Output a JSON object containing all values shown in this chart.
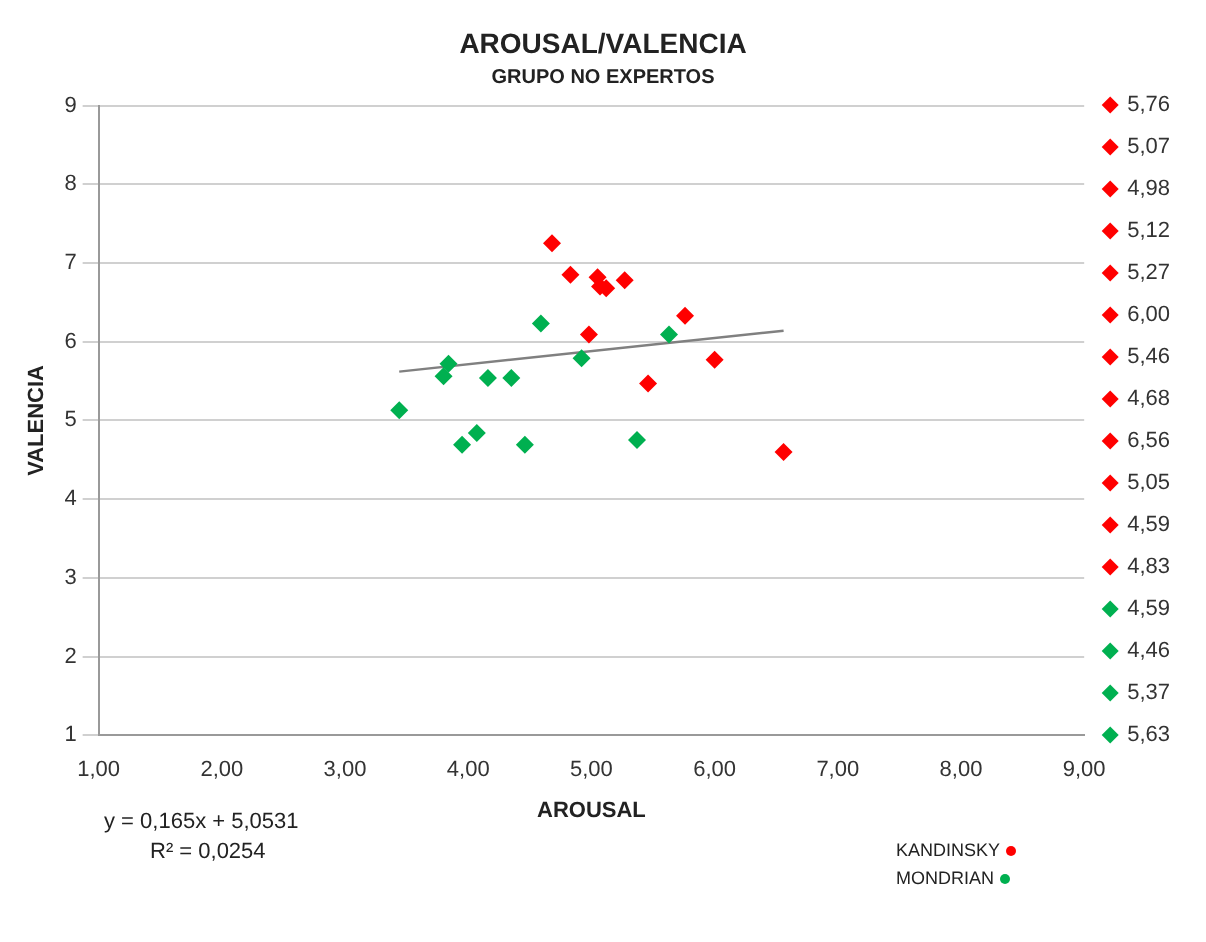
{
  "chart_data": {
    "type": "scatter",
    "title": "AROUSAL/VALENCIA",
    "subtitle": "GRUPO NO EXPERTOS",
    "xlabel": "AROUSAL",
    "ylabel": "VALENCIA",
    "xlim": [
      1,
      9
    ],
    "xticks": [
      {
        "value": 1,
        "label": "1,00"
      },
      {
        "value": 2,
        "label": "2,00"
      },
      {
        "value": 3,
        "label": "3,00"
      },
      {
        "value": 4,
        "label": "4,00"
      },
      {
        "value": 5,
        "label": "5,00"
      },
      {
        "value": 6,
        "label": "6,00"
      },
      {
        "value": 7,
        "label": "7,00"
      },
      {
        "value": 8,
        "label": "8,00"
      },
      {
        "value": 9,
        "label": "9,00"
      }
    ],
    "ylim": [
      1,
      9
    ],
    "yticks": [
      1,
      2,
      3,
      4,
      5,
      6,
      7,
      8,
      9
    ],
    "grid": "y",
    "legend": "right",
    "marker": "diamond",
    "series": [
      {
        "name": "5,76",
        "color": "#ff0000",
        "x": [
          5.76
        ],
        "values": [
          6.33
        ]
      },
      {
        "name": "5,07",
        "color": "#ff0000",
        "x": [
          5.07
        ],
        "values": [
          6.7
        ]
      },
      {
        "name": "4,98",
        "color": "#ff0000",
        "x": [
          4.98
        ],
        "values": [
          6.09
        ]
      },
      {
        "name": "5,12",
        "color": "#ff0000",
        "x": [
          5.12
        ],
        "values": [
          6.68
        ]
      },
      {
        "name": "5,27",
        "color": "#ff0000",
        "x": [
          5.27
        ],
        "values": [
          6.78
        ]
      },
      {
        "name": "6,00",
        "color": "#ff0000",
        "x": [
          6.0
        ],
        "values": [
          5.77
        ]
      },
      {
        "name": "5,46",
        "color": "#ff0000",
        "x": [
          5.46
        ],
        "values": [
          5.47
        ]
      },
      {
        "name": "4,68",
        "color": "#ff0000",
        "x": [
          4.68
        ],
        "values": [
          7.25
        ]
      },
      {
        "name": "6,56",
        "color": "#ff0000",
        "x": [
          6.56
        ],
        "values": [
          4.6
        ]
      },
      {
        "name": "5,05",
        "color": "#ff0000",
        "x": [
          5.05
        ],
        "values": [
          6.82
        ]
      },
      {
        "name": "4,59",
        "color": "#ff0000"
      },
      {
        "name": "4,83",
        "color": "#ff0000",
        "x": [
          4.83
        ],
        "values": [
          6.85
        ]
      },
      {
        "name": "4,59",
        "color": "#00b050",
        "x": [
          4.59
        ],
        "values": [
          6.23
        ]
      },
      {
        "name": "4,46",
        "color": "#00b050",
        "x": [
          4.46
        ],
        "values": [
          4.69
        ]
      },
      {
        "name": "5,37",
        "color": "#00b050",
        "x": [
          5.37
        ],
        "values": [
          4.75
        ]
      },
      {
        "name": "5,63",
        "color": "#00b050",
        "x": [
          5.63
        ],
        "values": [
          6.09
        ]
      },
      {
        "color": "#00b050",
        "x": [
          3.44,
          3.8,
          3.84,
          4.16,
          4.35,
          3.95,
          4.07,
          4.92
        ],
        "values": [
          5.13,
          5.56,
          5.72,
          5.54,
          5.54,
          4.69,
          4.84,
          5.79
        ]
      },
      {
        "type": "line",
        "marker": "none",
        "color": "#808080",
        "x": [
          3.44,
          6.56
        ],
        "values": [
          5.62,
          6.14
        ]
      }
    ],
    "annotations": [
      "y = 0,165x + 5,0531",
      "R² = 0,0254",
      "KANDINSKY",
      "MONDRIAN"
    ]
  }
}
